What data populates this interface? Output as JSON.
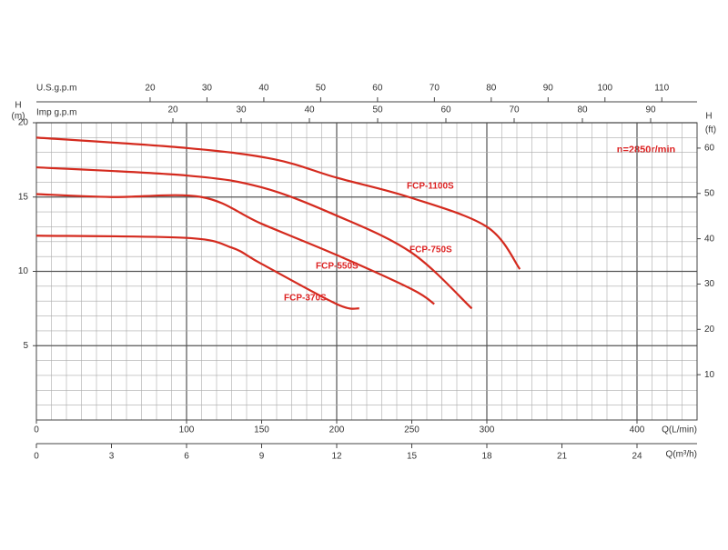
{
  "chart_data": {
    "type": "line",
    "annotation": "n=2850r/min",
    "ylabel": [
      "H",
      "(m)"
    ],
    "ylim": [
      0,
      20
    ],
    "yticks": [
      5,
      10,
      15,
      20
    ],
    "y2label": [
      "H",
      "(ft)"
    ],
    "y2lim": [
      0,
      65.6
    ],
    "y2ticks": [
      10,
      20,
      30,
      40,
      50,
      60
    ],
    "xlabel": "Q(L/min)",
    "xlim": [
      0,
      440
    ],
    "xticks": [
      0,
      100,
      150,
      200,
      250,
      300,
      400
    ],
    "x2label": "Q(m³/h)",
    "x2lim": [
      0,
      26.4
    ],
    "x2ticks": [
      0,
      3,
      6,
      9,
      12,
      15,
      18,
      21,
      24
    ],
    "x3label": "U.S.g.p.m",
    "x3lim": [
      0,
      116.2
    ],
    "x3ticks": [
      20,
      30,
      40,
      50,
      60,
      70,
      80,
      90,
      100,
      110
    ],
    "x4label": "Imp g.p.m",
    "x4lim": [
      0,
      96.8
    ],
    "x4ticks": [
      20,
      30,
      40,
      50,
      60,
      70,
      80,
      90
    ],
    "grid": true,
    "xgrid_step": 10,
    "ygrid_step": 1,
    "xmajor_step": 100,
    "ymajor_step": 5,
    "series": [
      {
        "name": "FCP-1100S",
        "color": "#d42a1e",
        "x": [
          0,
          100,
          158,
          200,
          248,
          300,
          322
        ],
        "values": [
          19.0,
          18.3,
          17.55,
          16.3,
          15.0,
          13.0,
          10.15
        ]
      },
      {
        "name": "FCP-750S",
        "color": "#d42a1e",
        "x": [
          0,
          100,
          150,
          200,
          250,
          290
        ],
        "values": [
          17.0,
          16.45,
          15.65,
          13.75,
          11.25,
          7.5
        ]
      },
      {
        "name": "FCP-550S",
        "color": "#d42a1e",
        "x": [
          0,
          50,
          110,
          150,
          200,
          250,
          265
        ],
        "values": [
          15.2,
          15.0,
          15.0,
          13.2,
          11.1,
          8.8,
          7.8
        ]
      },
      {
        "name": "FCP-370S",
        "color": "#d42a1e",
        "x": [
          0,
          100,
          130,
          150,
          200,
          215
        ],
        "values": [
          12.4,
          12.25,
          11.6,
          10.5,
          7.8,
          7.5
        ]
      }
    ]
  }
}
